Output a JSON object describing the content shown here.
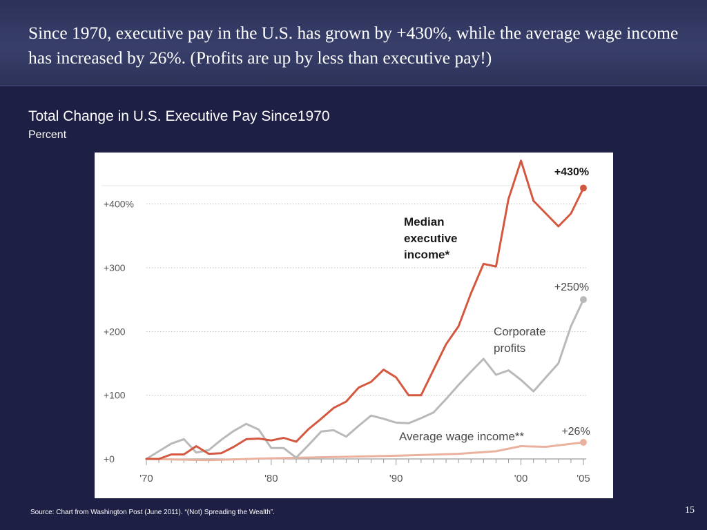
{
  "slide": {
    "title": "Since 1970, executive pay in the U.S. has grown by +430%, while the average wage income has increased by 26%.  (Profits are up by less than executive pay!)",
    "source": "Source: Chart from Washington Post (June 2011). “(Not) Spreading the Wealth”.",
    "page_number": "15"
  },
  "chart_data": {
    "type": "line",
    "title": "Total Change in U.S. Executive Pay Since1970",
    "subtitle": "Percent",
    "xlabel": "",
    "ylabel": "",
    "ylim": [
      0,
      430
    ],
    "xlim": [
      1970,
      2005
    ],
    "grid": true,
    "y_ticks": [
      {
        "value": 400,
        "label": "+400%"
      },
      {
        "value": 300,
        "label": "+300"
      },
      {
        "value": 200,
        "label": "+200"
      },
      {
        "value": 100,
        "label": "+100"
      },
      {
        "value": 0,
        "label": "+0"
      }
    ],
    "x_ticks": [
      {
        "value": 1970,
        "label": "'70"
      },
      {
        "value": 1980,
        "label": "'80"
      },
      {
        "value": 1990,
        "label": "'90"
      },
      {
        "value": 2000,
        "label": "'00"
      },
      {
        "value": 2005,
        "label": "'05"
      }
    ],
    "series": [
      {
        "name": "Median executive income*",
        "color": "#d4583f",
        "end_label": "+430%",
        "x": [
          1970,
          1971,
          1972,
          1973,
          1974,
          1975,
          1976,
          1977,
          1978,
          1979,
          1980,
          1981,
          1982,
          1983,
          1984,
          1985,
          1986,
          1987,
          1988,
          1989,
          1990,
          1991,
          1992,
          1993,
          1994,
          1995,
          1996,
          1997,
          1998,
          1999,
          2000,
          2001,
          2002,
          2003,
          2004,
          2005
        ],
        "values": [
          0,
          0,
          7,
          7,
          20,
          8,
          9,
          19,
          31,
          32,
          29,
          33,
          27,
          47,
          63,
          80,
          90,
          112,
          121,
          140,
          128,
          100,
          100,
          140,
          180,
          208,
          260,
          306,
          302,
          408,
          468,
          405,
          385,
          365,
          385,
          425
        ]
      },
      {
        "name": "Corporate profits",
        "color": "#b9b9b9",
        "end_label": "+250%",
        "x": [
          1970,
          1971,
          1972,
          1973,
          1974,
          1975,
          1976,
          1977,
          1978,
          1979,
          1980,
          1981,
          1982,
          1983,
          1984,
          1985,
          1986,
          1987,
          1988,
          1989,
          1990,
          1991,
          1992,
          1993,
          1994,
          1995,
          1996,
          1997,
          1998,
          1999,
          2000,
          2001,
          2002,
          2003,
          2004,
          2005
        ],
        "values": [
          0,
          12,
          24,
          31,
          10,
          14,
          30,
          44,
          55,
          46,
          17,
          17,
          2,
          22,
          43,
          45,
          35,
          52,
          68,
          63,
          57,
          56,
          64,
          73,
          94,
          116,
          137,
          157,
          132,
          139,
          124,
          106,
          128,
          150,
          208,
          250
        ]
      },
      {
        "name": "Average wage income**",
        "color": "#eab29e",
        "end_label": "+26%",
        "x": [
          1970,
          1975,
          1980,
          1985,
          1990,
          1995,
          1998,
          2000,
          2002,
          2005
        ],
        "values": [
          0,
          -2,
          1,
          3,
          5,
          8,
          12,
          20,
          19,
          26
        ]
      }
    ]
  }
}
